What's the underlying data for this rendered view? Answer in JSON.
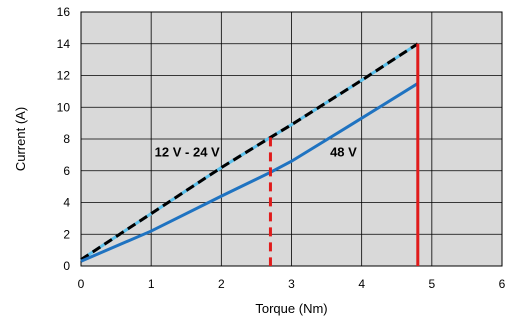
{
  "chart_data": {
    "type": "line",
    "title": "",
    "xlabel": "Torque (Nm)",
    "ylabel": "Current (A)",
    "xlim": [
      0,
      6
    ],
    "ylim": [
      0,
      16
    ],
    "xticks": [
      0,
      1,
      2,
      3,
      4,
      5,
      6
    ],
    "yticks": [
      0,
      2,
      4,
      6,
      8,
      10,
      12,
      14,
      16
    ],
    "grid": true,
    "legend": "none",
    "background": "#d9d9d9",
    "series": [
      {
        "name": "12 V - 24 V",
        "style": "dashed",
        "color": "#000000",
        "under_color": "#5bc0eb",
        "x": [
          0.0,
          1.0,
          2.0,
          2.7,
          3.0,
          4.0,
          4.8
        ],
        "y": [
          0.4,
          3.3,
          6.2,
          8.1,
          8.9,
          11.7,
          14.0
        ]
      },
      {
        "name": "48 V",
        "style": "solid",
        "color": "#1f73c1",
        "x": [
          0.0,
          1.0,
          2.0,
          2.7,
          3.0,
          3.85,
          4.8
        ],
        "y": [
          0.3,
          2.2,
          4.4,
          5.9,
          6.6,
          8.9,
          11.5
        ]
      }
    ],
    "markers": [
      {
        "x": 2.7,
        "y_top": 8.1,
        "style": "dashed",
        "color": "#e01b1b"
      },
      {
        "x": 4.8,
        "y_top": 14.0,
        "style": "solid",
        "color": "#e01b1b"
      }
    ],
    "annotations": [
      {
        "text": "12 V - 24 V",
        "x": 1.05,
        "y": 6.9
      },
      {
        "text": "48 V",
        "x": 3.55,
        "y": 6.9
      }
    ]
  }
}
